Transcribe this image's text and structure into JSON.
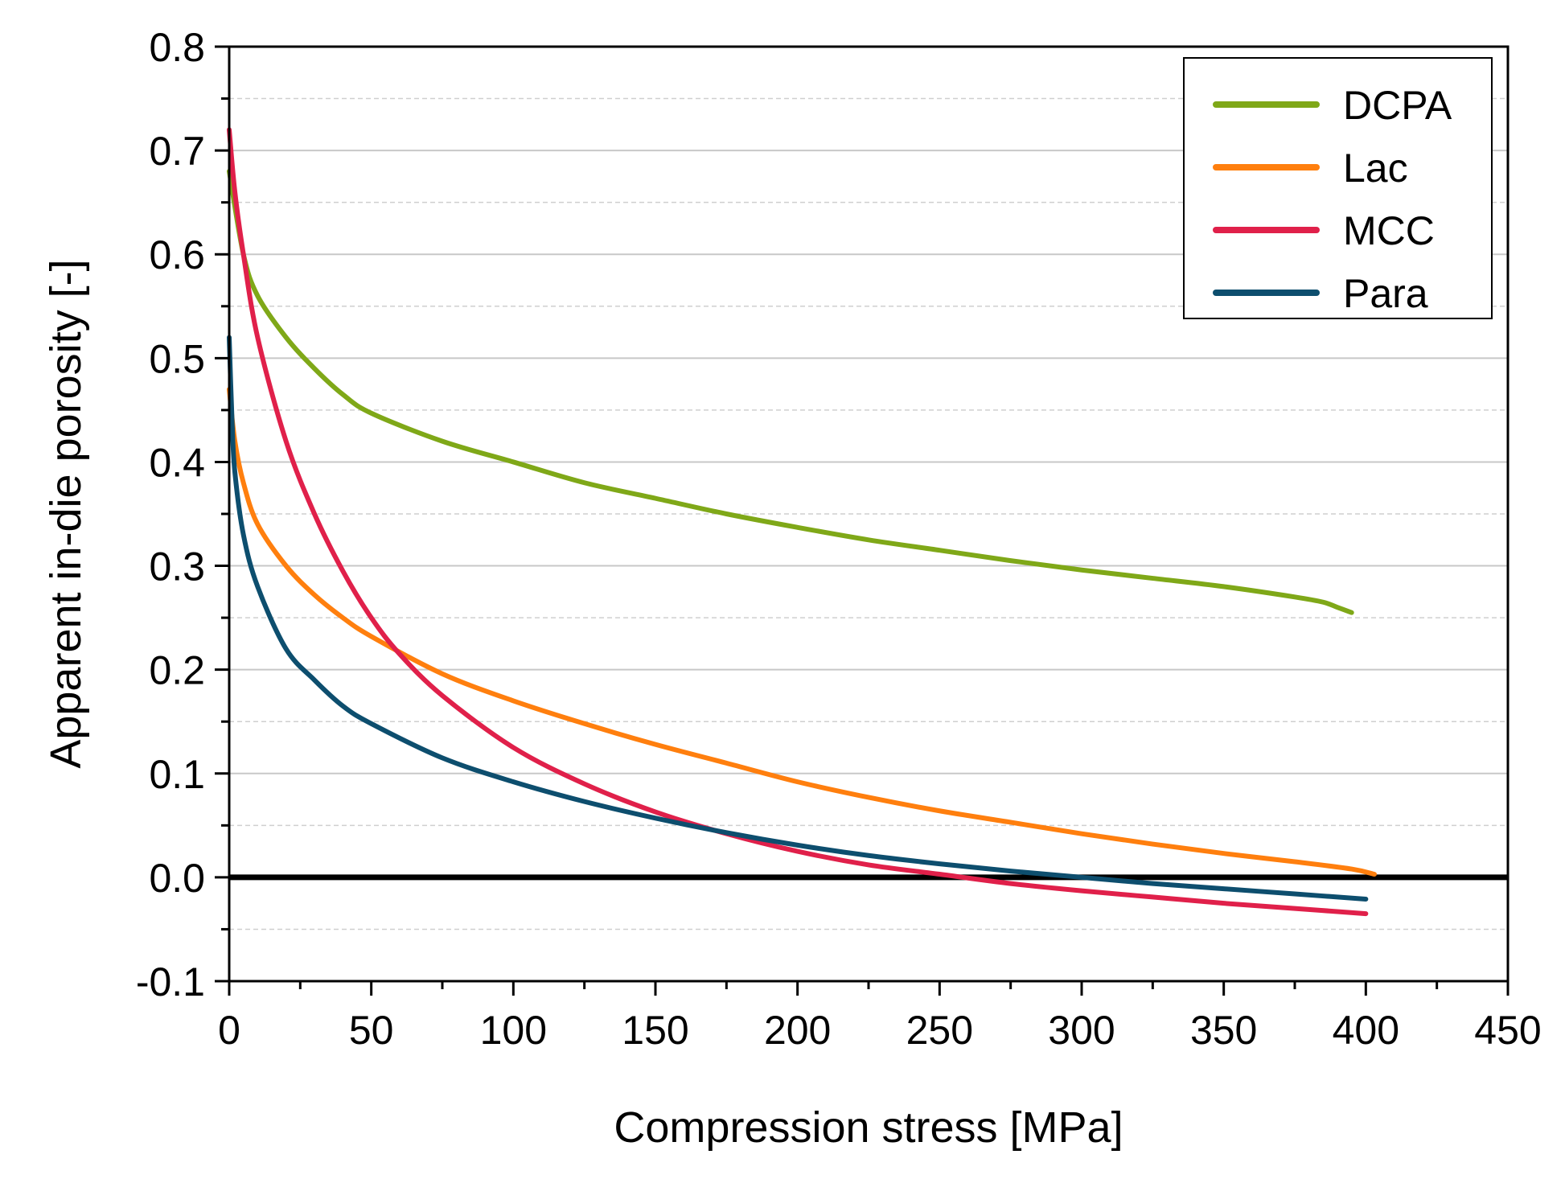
{
  "chart_data": {
    "type": "line",
    "title": "",
    "xlabel": "Compression stress [MPa]",
    "ylabel": "Apparent in-die porosity [-]",
    "xlim": [
      0,
      450
    ],
    "ylim": [
      -0.1,
      0.8
    ],
    "xticks": [
      0,
      50,
      100,
      150,
      200,
      250,
      300,
      350,
      400,
      450
    ],
    "xtick_labels": [
      "0",
      "50",
      "100",
      "150",
      "200",
      "250",
      "300",
      "350",
      "400",
      "450"
    ],
    "yticks": [
      -0.1,
      0.0,
      0.1,
      0.2,
      0.3,
      0.4,
      0.5,
      0.6,
      0.7,
      0.8
    ],
    "ytick_labels": [
      "-0.1",
      "0.0",
      "0.1",
      "0.2",
      "0.3",
      "0.4",
      "0.5",
      "0.6",
      "0.7",
      "0.8"
    ],
    "grid": true,
    "zero_line": true,
    "legend_position": "top-right",
    "series": [
      {
        "name": "DCPA",
        "color": "#7fa818",
        "x": [
          0,
          5,
          10,
          20,
          30,
          40,
          50,
          75,
          100,
          125,
          150,
          175,
          200,
          225,
          250,
          275,
          300,
          325,
          350,
          375,
          385,
          390,
          395
        ],
        "y": [
          0.68,
          0.6,
          0.56,
          0.52,
          0.49,
          0.465,
          0.447,
          0.42,
          0.4,
          0.38,
          0.365,
          0.35,
          0.337,
          0.325,
          0.315,
          0.305,
          0.296,
          0.288,
          0.28,
          0.27,
          0.265,
          0.26,
          0.255
        ]
      },
      {
        "name": "Lac",
        "color": "#ff7f0e",
        "x": [
          0,
          2,
          5,
          10,
          20,
          30,
          40,
          50,
          75,
          100,
          125,
          150,
          175,
          200,
          225,
          250,
          275,
          300,
          325,
          350,
          375,
          395,
          403
        ],
        "y": [
          0.47,
          0.42,
          0.38,
          0.34,
          0.3,
          0.272,
          0.25,
          0.232,
          0.196,
          0.17,
          0.148,
          0.128,
          0.11,
          0.092,
          0.077,
          0.064,
          0.053,
          0.042,
          0.032,
          0.023,
          0.015,
          0.008,
          0.003
        ]
      },
      {
        "name": "MCC",
        "color": "#e0204a",
        "x": [
          0,
          2,
          5,
          10,
          20,
          30,
          40,
          50,
          60,
          75,
          100,
          125,
          150,
          175,
          200,
          225,
          250,
          275,
          300,
          325,
          350,
          375,
          400
        ],
        "y": [
          0.72,
          0.66,
          0.6,
          0.52,
          0.42,
          0.35,
          0.295,
          0.25,
          0.215,
          0.175,
          0.125,
          0.09,
          0.063,
          0.042,
          0.025,
          0.012,
          0.003,
          -0.006,
          -0.013,
          -0.019,
          -0.025,
          -0.03,
          -0.035
        ]
      },
      {
        "name": "Para",
        "color": "#0d4e6e",
        "x": [
          0,
          1,
          2,
          5,
          10,
          20,
          30,
          40,
          50,
          75,
          100,
          125,
          150,
          175,
          200,
          225,
          250,
          275,
          300,
          325,
          350,
          375,
          400
        ],
        "y": [
          0.52,
          0.44,
          0.39,
          0.33,
          0.28,
          0.22,
          0.19,
          0.165,
          0.148,
          0.115,
          0.092,
          0.073,
          0.057,
          0.043,
          0.031,
          0.021,
          0.013,
          0.006,
          0.0,
          -0.006,
          -0.011,
          -0.016,
          -0.021
        ]
      }
    ]
  }
}
